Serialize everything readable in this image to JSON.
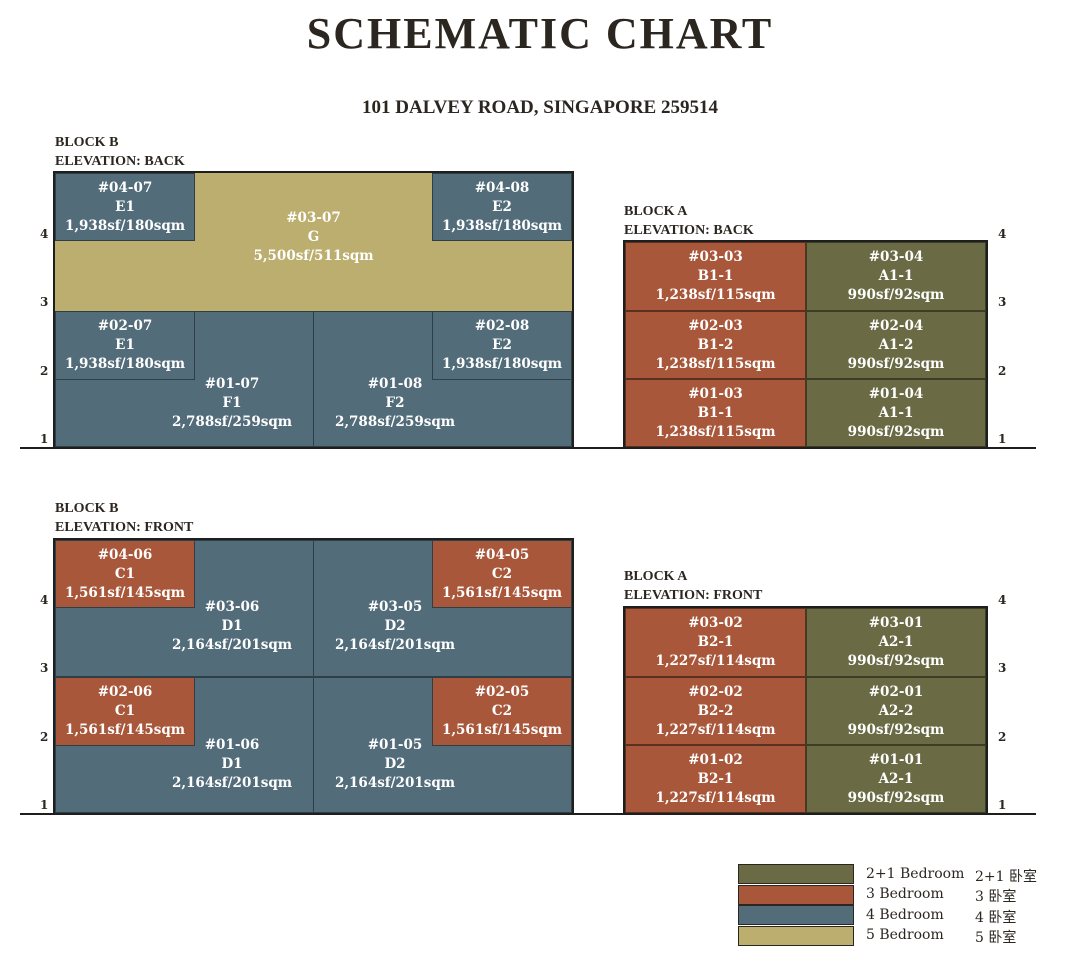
{
  "title": "SCHEMATIC CHART",
  "address": "101 DALVEY ROAD, SINGAPORE 259514",
  "colors": {
    "two_plus_one_bedroom": "#6a6b45",
    "three_bedroom": "#a9573b",
    "four_bedroom": "#526c7a",
    "five_bedroom": "#bcae6e"
  },
  "floors": [
    "1",
    "2",
    "3",
    "4"
  ],
  "block_b_back": {
    "label_block": "BLOCK B",
    "label_elevation": "ELEVATION: BACK",
    "units": [
      {
        "no": "#04-07",
        "type": "E1",
        "area": "1,938sf/180sqm",
        "bedrooms": "4 Bedroom"
      },
      {
        "no": "#03-07",
        "type": "G",
        "area": "5,500sf/511sqm",
        "bedrooms": "5 Bedroom"
      },
      {
        "no": "#04-08",
        "type": "E2",
        "area": "1,938sf/180sqm",
        "bedrooms": "4 Bedroom"
      },
      {
        "no": "#02-07",
        "type": "E1",
        "area": "1,938sf/180sqm",
        "bedrooms": "4 Bedroom"
      },
      {
        "no": "#02-08",
        "type": "E2",
        "area": "1,938sf/180sqm",
        "bedrooms": "4 Bedroom"
      },
      {
        "no": "#01-07",
        "type": "F1",
        "area": "2,788sf/259sqm",
        "bedrooms": "4 Bedroom"
      },
      {
        "no": "#01-08",
        "type": "F2",
        "area": "2,788sf/259sqm",
        "bedrooms": "4 Bedroom"
      }
    ]
  },
  "block_a_back": {
    "label_block": "BLOCK A",
    "label_elevation": "ELEVATION: BACK",
    "units": [
      {
        "no": "#03-03",
        "type": "B1-1",
        "area": "1,238sf/115sqm",
        "bedrooms": "3 Bedroom"
      },
      {
        "no": "#03-04",
        "type": "A1-1",
        "area": "990sf/92sqm",
        "bedrooms": "2+1 Bedroom"
      },
      {
        "no": "#02-03",
        "type": "B1-2",
        "area": "1,238sf/115sqm",
        "bedrooms": "3 Bedroom"
      },
      {
        "no": "#02-04",
        "type": "A1-2",
        "area": "990sf/92sqm",
        "bedrooms": "2+1 Bedroom"
      },
      {
        "no": "#01-03",
        "type": "B1-1",
        "area": "1,238sf/115sqm",
        "bedrooms": "3 Bedroom"
      },
      {
        "no": "#01-04",
        "type": "A1-1",
        "area": "990sf/92sqm",
        "bedrooms": "2+1 Bedroom"
      }
    ]
  },
  "block_b_front": {
    "label_block": "BLOCK B",
    "label_elevation": "ELEVATION: FRONT",
    "units": [
      {
        "no": "#04-06",
        "type": "C1",
        "area": "1,561sf/145sqm",
        "bedrooms": "3 Bedroom"
      },
      {
        "no": "#04-05",
        "type": "C2",
        "area": "1,561sf/145sqm",
        "bedrooms": "3 Bedroom"
      },
      {
        "no": "#03-06",
        "type": "D1",
        "area": "2,164sf/201sqm",
        "bedrooms": "4 Bedroom"
      },
      {
        "no": "#03-05",
        "type": "D2",
        "area": "2,164sf/201sqm",
        "bedrooms": "4 Bedroom"
      },
      {
        "no": "#02-06",
        "type": "C1",
        "area": "1,561sf/145sqm",
        "bedrooms": "3 Bedroom"
      },
      {
        "no": "#02-05",
        "type": "C2",
        "area": "1,561sf/145sqm",
        "bedrooms": "3 Bedroom"
      },
      {
        "no": "#01-06",
        "type": "D1",
        "area": "2,164sf/201sqm",
        "bedrooms": "4 Bedroom"
      },
      {
        "no": "#01-05",
        "type": "D2",
        "area": "2,164sf/201sqm",
        "bedrooms": "4 Bedroom"
      }
    ]
  },
  "block_a_front": {
    "label_block": "BLOCK A",
    "label_elevation": "ELEVATION: FRONT",
    "units": [
      {
        "no": "#03-02",
        "type": "B2-1",
        "area": "1,227sf/114sqm",
        "bedrooms": "3 Bedroom"
      },
      {
        "no": "#03-01",
        "type": "A2-1",
        "area": "990sf/92sqm",
        "bedrooms": "2+1 Bedroom"
      },
      {
        "no": "#02-02",
        "type": "B2-2",
        "area": "1,227sf/114sqm",
        "bedrooms": "3 Bedroom"
      },
      {
        "no": "#02-01",
        "type": "A2-2",
        "area": "990sf/92sqm",
        "bedrooms": "2+1 Bedroom"
      },
      {
        "no": "#01-02",
        "type": "B2-1",
        "area": "1,227sf/114sqm",
        "bedrooms": "3 Bedroom"
      },
      {
        "no": "#01-01",
        "type": "A2-1",
        "area": "990sf/92sqm",
        "bedrooms": "2+1 Bedroom"
      }
    ]
  },
  "legend": [
    {
      "en": "2+1 Bedroom",
      "zh": "2+1 卧室",
      "color": "#6a6b45"
    },
    {
      "en": "3 Bedroom",
      "zh": "3 卧室",
      "color": "#a9573b"
    },
    {
      "en": "4 Bedroom",
      "zh": "4 卧室",
      "color": "#526c7a"
    },
    {
      "en": "5 Bedroom",
      "zh": "5 卧室",
      "color": "#bcae6e"
    }
  ]
}
